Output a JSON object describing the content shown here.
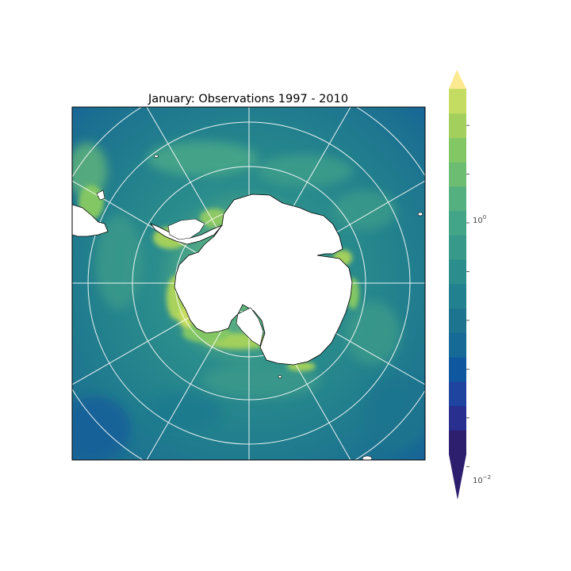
{
  "map": {
    "title": "January: Observations 1997 - 2010",
    "projection": "south-polar-stereographic",
    "graticule": {
      "latitude_circles": 6,
      "meridians": 12,
      "color": "#ffffff"
    },
    "ocean_color": "#2a7a8a",
    "land_color": "#ffffff",
    "coastline_color": "#000000"
  },
  "colorbar": {
    "scale": "log",
    "orientation": "vertical",
    "extend": "both",
    "ticks": [
      {
        "value": 1,
        "exponent": "0"
      },
      {
        "value": 0.01,
        "exponent": "−2"
      }
    ],
    "colors": [
      "#2d1e6e",
      "#292f8e",
      "#1e44a0",
      "#0f58a0",
      "#166a96",
      "#1d748e",
      "#22818e",
      "#2b8d8c",
      "#37998a",
      "#43a588",
      "#55b080",
      "#6cbc72",
      "#83c765",
      "#a3d05c",
      "#c4dc62"
    ],
    "over_color": "#fde98f",
    "under_color": "#2d1e6e"
  }
}
